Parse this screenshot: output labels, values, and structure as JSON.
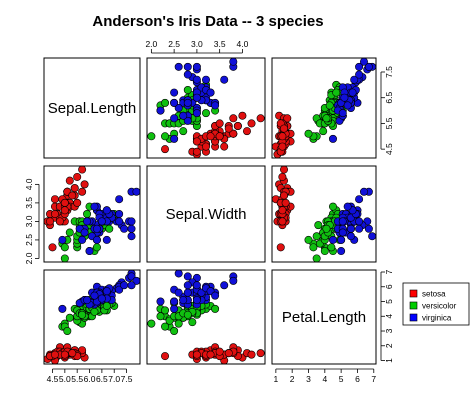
{
  "chart_data": {
    "type": "scatter",
    "title": "Anderson's Iris Data -- 3 species",
    "variables": [
      "Sepal.Length",
      "Sepal.Width",
      "Petal.Length"
    ],
    "ranges": {
      "Sepal.Length": [
        4.3,
        7.9
      ],
      "Sepal.Width": [
        2.0,
        4.4
      ],
      "Petal.Length": [
        1.0,
        6.9
      ]
    },
    "ticks": {
      "Sepal.Length": [
        4.5,
        5.5,
        6.5,
        7.5
      ],
      "Sepal.Width": [
        2.0,
        2.5,
        3.0,
        3.5,
        4.0
      ],
      "Petal.Length": [
        1,
        2,
        3,
        4,
        5,
        6,
        7
      ]
    },
    "extra_ticks": {
      "Sepal.Length": [
        5.0,
        6.0,
        7.0
      ]
    },
    "tick_labels": {
      "Sepal.Length": [
        "4.5",
        "5.5",
        "6.5",
        "7.5"
      ],
      "Sepal.Length_bottom": [
        "4.5",
        "5.0",
        "5.5",
        "6.0",
        "6.5",
        "7.0",
        "7.5"
      ],
      "Sepal.Width": [
        "2.0",
        "2.5",
        "3.0",
        "3.5",
        "4.0"
      ],
      "Petal.Length": [
        "1",
        "2",
        "3",
        "4",
        "5",
        "6",
        "7"
      ]
    },
    "legend": {
      "placement": "right",
      "entries": [
        {
          "label": "setosa",
          "color": "#ff0000"
        },
        {
          "label": "versicolor",
          "color": "#00cd00"
        },
        {
          "label": "virginica",
          "color": "#0000ff"
        }
      ]
    },
    "series": [
      {
        "name": "setosa",
        "color": "#e01010",
        "points": [
          [
            5.1,
            3.5,
            1.4
          ],
          [
            4.9,
            3.0,
            1.4
          ],
          [
            4.7,
            3.2,
            1.3
          ],
          [
            4.6,
            3.1,
            1.5
          ],
          [
            5.0,
            3.6,
            1.4
          ],
          [
            5.4,
            3.9,
            1.7
          ],
          [
            4.6,
            3.4,
            1.4
          ],
          [
            5.0,
            3.4,
            1.5
          ],
          [
            4.4,
            2.9,
            1.4
          ],
          [
            4.9,
            3.1,
            1.5
          ],
          [
            5.4,
            3.7,
            1.5
          ],
          [
            4.8,
            3.4,
            1.6
          ],
          [
            4.8,
            3.0,
            1.4
          ],
          [
            4.3,
            3.0,
            1.1
          ],
          [
            5.8,
            4.0,
            1.2
          ],
          [
            5.7,
            4.4,
            1.5
          ],
          [
            5.4,
            3.9,
            1.3
          ],
          [
            5.1,
            3.5,
            1.4
          ],
          [
            5.7,
            3.8,
            1.7
          ],
          [
            5.1,
            3.8,
            1.5
          ],
          [
            5.4,
            3.4,
            1.7
          ],
          [
            5.1,
            3.7,
            1.5
          ],
          [
            4.6,
            3.6,
            1.0
          ],
          [
            5.1,
            3.3,
            1.7
          ],
          [
            4.8,
            3.4,
            1.9
          ],
          [
            5.0,
            3.0,
            1.6
          ],
          [
            5.0,
            3.4,
            1.6
          ],
          [
            5.2,
            3.5,
            1.5
          ],
          [
            5.2,
            3.4,
            1.4
          ],
          [
            4.7,
            3.2,
            1.6
          ],
          [
            4.8,
            3.1,
            1.6
          ],
          [
            5.4,
            3.4,
            1.5
          ],
          [
            5.2,
            4.1,
            1.5
          ],
          [
            5.5,
            4.2,
            1.4
          ],
          [
            4.9,
            3.1,
            1.5
          ],
          [
            5.0,
            3.2,
            1.2
          ],
          [
            5.5,
            3.5,
            1.3
          ],
          [
            4.9,
            3.6,
            1.4
          ],
          [
            4.4,
            3.0,
            1.3
          ],
          [
            5.1,
            3.4,
            1.5
          ],
          [
            5.0,
            3.5,
            1.3
          ],
          [
            4.5,
            2.3,
            1.3
          ],
          [
            4.4,
            3.2,
            1.3
          ],
          [
            5.0,
            3.5,
            1.6
          ],
          [
            5.1,
            3.8,
            1.9
          ],
          [
            4.8,
            3.0,
            1.4
          ],
          [
            5.1,
            3.8,
            1.6
          ],
          [
            4.6,
            3.2,
            1.4
          ],
          [
            5.3,
            3.7,
            1.5
          ],
          [
            5.0,
            3.3,
            1.4
          ]
        ]
      },
      {
        "name": "versicolor",
        "color": "#10c010",
        "points": [
          [
            7.0,
            3.2,
            4.7
          ],
          [
            6.4,
            3.2,
            4.5
          ],
          [
            6.9,
            3.1,
            4.9
          ],
          [
            5.5,
            2.3,
            4.0
          ],
          [
            6.5,
            2.8,
            4.6
          ],
          [
            5.7,
            2.8,
            4.5
          ],
          [
            6.3,
            3.3,
            4.7
          ],
          [
            4.9,
            2.4,
            3.3
          ],
          [
            6.6,
            2.9,
            4.6
          ],
          [
            5.2,
            2.7,
            3.9
          ],
          [
            5.0,
            2.0,
            3.5
          ],
          [
            5.9,
            3.0,
            4.2
          ],
          [
            6.0,
            2.2,
            4.0
          ],
          [
            6.1,
            2.9,
            4.7
          ],
          [
            5.6,
            2.9,
            3.6
          ],
          [
            6.7,
            3.1,
            4.4
          ],
          [
            5.6,
            3.0,
            4.5
          ],
          [
            5.8,
            2.7,
            4.1
          ],
          [
            6.2,
            2.2,
            4.5
          ],
          [
            5.6,
            2.5,
            3.9
          ],
          [
            5.9,
            3.2,
            4.8
          ],
          [
            6.1,
            2.8,
            4.0
          ],
          [
            6.3,
            2.5,
            4.9
          ],
          [
            6.1,
            2.8,
            4.7
          ],
          [
            6.4,
            2.9,
            4.3
          ],
          [
            6.6,
            3.0,
            4.4
          ],
          [
            6.8,
            2.8,
            4.8
          ],
          [
            6.7,
            3.0,
            5.0
          ],
          [
            6.0,
            2.9,
            4.5
          ],
          [
            5.7,
            2.6,
            3.5
          ],
          [
            5.5,
            2.4,
            3.8
          ],
          [
            5.5,
            2.4,
            3.7
          ],
          [
            5.8,
            2.7,
            3.9
          ],
          [
            6.0,
            2.7,
            5.1
          ],
          [
            5.4,
            3.0,
            4.5
          ],
          [
            6.0,
            3.4,
            4.5
          ],
          [
            6.7,
            3.1,
            4.7
          ],
          [
            6.3,
            2.3,
            4.4
          ],
          [
            5.6,
            3.0,
            4.1
          ],
          [
            5.5,
            2.5,
            4.0
          ],
          [
            5.5,
            2.6,
            4.4
          ],
          [
            6.1,
            3.0,
            4.6
          ],
          [
            5.8,
            2.6,
            4.0
          ],
          [
            5.0,
            2.3,
            3.3
          ],
          [
            5.6,
            2.7,
            4.2
          ],
          [
            5.7,
            3.0,
            4.2
          ],
          [
            5.7,
            2.9,
            4.2
          ],
          [
            6.2,
            2.9,
            4.3
          ],
          [
            5.1,
            2.5,
            3.0
          ],
          [
            5.7,
            2.8,
            4.1
          ]
        ]
      },
      {
        "name": "virginica",
        "color": "#1010d8",
        "points": [
          [
            6.3,
            3.3,
            6.0
          ],
          [
            5.8,
            2.7,
            5.1
          ],
          [
            7.1,
            3.0,
            5.9
          ],
          [
            6.3,
            2.9,
            5.6
          ],
          [
            6.5,
            3.0,
            5.8
          ],
          [
            7.6,
            3.0,
            6.6
          ],
          [
            4.9,
            2.5,
            4.5
          ],
          [
            7.3,
            2.9,
            6.3
          ],
          [
            6.7,
            2.5,
            5.8
          ],
          [
            7.2,
            3.6,
            6.1
          ],
          [
            6.5,
            3.2,
            5.1
          ],
          [
            6.4,
            2.7,
            5.3
          ],
          [
            6.8,
            3.0,
            5.5
          ],
          [
            5.7,
            2.5,
            5.0
          ],
          [
            5.8,
            2.8,
            5.1
          ],
          [
            6.4,
            3.2,
            5.3
          ],
          [
            6.5,
            3.0,
            5.5
          ],
          [
            7.7,
            3.8,
            6.7
          ],
          [
            7.7,
            2.6,
            6.9
          ],
          [
            6.0,
            2.2,
            5.0
          ],
          [
            6.9,
            3.2,
            5.7
          ],
          [
            5.6,
            2.8,
            4.9
          ],
          [
            7.7,
            2.8,
            6.7
          ],
          [
            6.3,
            2.7,
            4.9
          ],
          [
            6.7,
            3.3,
            5.7
          ],
          [
            7.2,
            3.2,
            6.0
          ],
          [
            6.2,
            2.8,
            4.8
          ],
          [
            6.1,
            3.0,
            4.9
          ],
          [
            6.4,
            2.8,
            5.6
          ],
          [
            7.2,
            3.0,
            5.8
          ],
          [
            7.4,
            2.8,
            6.1
          ],
          [
            7.9,
            3.8,
            6.4
          ],
          [
            6.4,
            2.8,
            5.6
          ],
          [
            6.3,
            2.8,
            5.1
          ],
          [
            6.1,
            2.6,
            5.6
          ],
          [
            7.7,
            3.0,
            6.1
          ],
          [
            6.3,
            3.4,
            5.6
          ],
          [
            6.4,
            3.1,
            5.5
          ],
          [
            6.0,
            3.0,
            4.8
          ],
          [
            6.9,
            3.1,
            5.4
          ],
          [
            6.7,
            3.1,
            5.6
          ],
          [
            6.9,
            3.1,
            5.1
          ],
          [
            5.8,
            2.7,
            5.1
          ],
          [
            6.8,
            3.2,
            5.9
          ],
          [
            6.7,
            3.3,
            5.7
          ],
          [
            6.7,
            3.0,
            5.2
          ],
          [
            6.3,
            2.5,
            5.0
          ],
          [
            6.5,
            3.0,
            5.2
          ],
          [
            6.2,
            3.4,
            5.4
          ],
          [
            5.9,
            3.0,
            5.1
          ]
        ]
      }
    ]
  }
}
